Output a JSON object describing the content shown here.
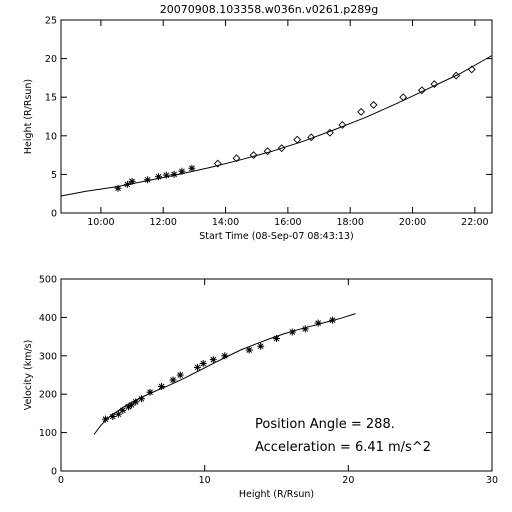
{
  "title": "20070908.103358.w036n.v0261.p289g",
  "chart_data": [
    {
      "type": "scatter",
      "xlabel": "Start Time (08-Sep-07 08:43:13)",
      "ylabel": "Height (R/Rsun)",
      "xlim": [
        8.72,
        22.55
      ],
      "ylim": [
        0,
        25
      ],
      "x_ticks": [
        10,
        12,
        14,
        16,
        18,
        20,
        22
      ],
      "x_tick_labels": [
        "10:00",
        "12:00",
        "14:00",
        "16:00",
        "18:00",
        "20:00",
        "22:00"
      ],
      "y_ticks": [
        0,
        5,
        10,
        15,
        20,
        25
      ],
      "y_tick_labels": [
        "0",
        "5",
        "10",
        "15",
        "20",
        "25"
      ],
      "grid": false,
      "series": [
        {
          "marker": "asterisk",
          "x": [
            10.55,
            10.85,
            11.0,
            11.5,
            11.85,
            12.1,
            12.35,
            12.6,
            12.92
          ],
          "y": [
            3.2,
            3.7,
            4.1,
            4.3,
            4.7,
            4.9,
            5.0,
            5.4,
            5.8
          ]
        },
        {
          "marker": "diamond",
          "x": [
            13.75,
            14.35,
            14.9,
            15.35,
            15.8,
            16.3,
            16.75,
            17.35,
            17.75,
            18.35,
            18.75,
            19.7,
            20.3,
            20.7,
            21.4,
            21.9
          ],
          "y": [
            6.4,
            7.1,
            7.5,
            8.0,
            8.4,
            9.5,
            9.8,
            10.4,
            11.4,
            13.1,
            14.0,
            15.0,
            15.9,
            16.7,
            17.8,
            18.6
          ]
        },
        {
          "marker": "line",
          "x": [
            8.72,
            9.5,
            10.5,
            11.5,
            12.5,
            13.5,
            14.5,
            15.5,
            16.5,
            17.5,
            18.5,
            19.5,
            20.5,
            21.5,
            22.55
          ],
          "y": [
            2.2,
            2.8,
            3.4,
            4.2,
            5.0,
            5.9,
            6.9,
            8.0,
            9.3,
            10.8,
            12.4,
            14.2,
            16.1,
            18.0,
            20.4
          ]
        }
      ]
    },
    {
      "type": "scatter",
      "xlabel": "Height (R/Rsun)",
      "ylabel": "Velocity (km/s)",
      "xlim": [
        0,
        30
      ],
      "ylim": [
        0,
        500
      ],
      "x_ticks": [
        0,
        10,
        20,
        30
      ],
      "x_tick_labels": [
        "0",
        "10",
        "20",
        "30"
      ],
      "y_ticks": [
        0,
        100,
        200,
        300,
        400,
        500
      ],
      "y_tick_labels": [
        "0",
        "100",
        "200",
        "300",
        "400",
        "500"
      ],
      "grid": false,
      "annotations": [
        "Position Angle =   288.",
        "Acceleration =    6.41 m/s^2"
      ],
      "series": [
        {
          "marker": "asterisk",
          "x": [
            3.1,
            3.6,
            4.0,
            4.3,
            4.7,
            4.9,
            5.2,
            5.6,
            6.2,
            7.0,
            7.8,
            8.3,
            9.5,
            9.9,
            10.6,
            11.4,
            13.1,
            13.9,
            15.0,
            16.1,
            17.0,
            17.9,
            18.9
          ],
          "y": [
            135,
            142,
            148,
            158,
            167,
            172,
            180,
            188,
            205,
            220,
            237,
            250,
            270,
            280,
            290,
            300,
            315,
            325,
            345,
            362,
            370,
            385,
            393
          ]
        },
        {
          "marker": "line",
          "x": [
            2.3,
            2.8,
            3.5,
            4.5,
            5.5,
            6.5,
            7.5,
            8.5,
            9.5,
            10.5,
            11.5,
            12.5,
            13.5,
            14.5,
            15.5,
            16.5,
            17.5,
            18.5,
            19.5,
            20.5
          ],
          "y": [
            95,
            120,
            145,
            170,
            190,
            207,
            223,
            240,
            259,
            278,
            297,
            315,
            330,
            344,
            357,
            368,
            378,
            388,
            398,
            410
          ]
        }
      ]
    }
  ]
}
